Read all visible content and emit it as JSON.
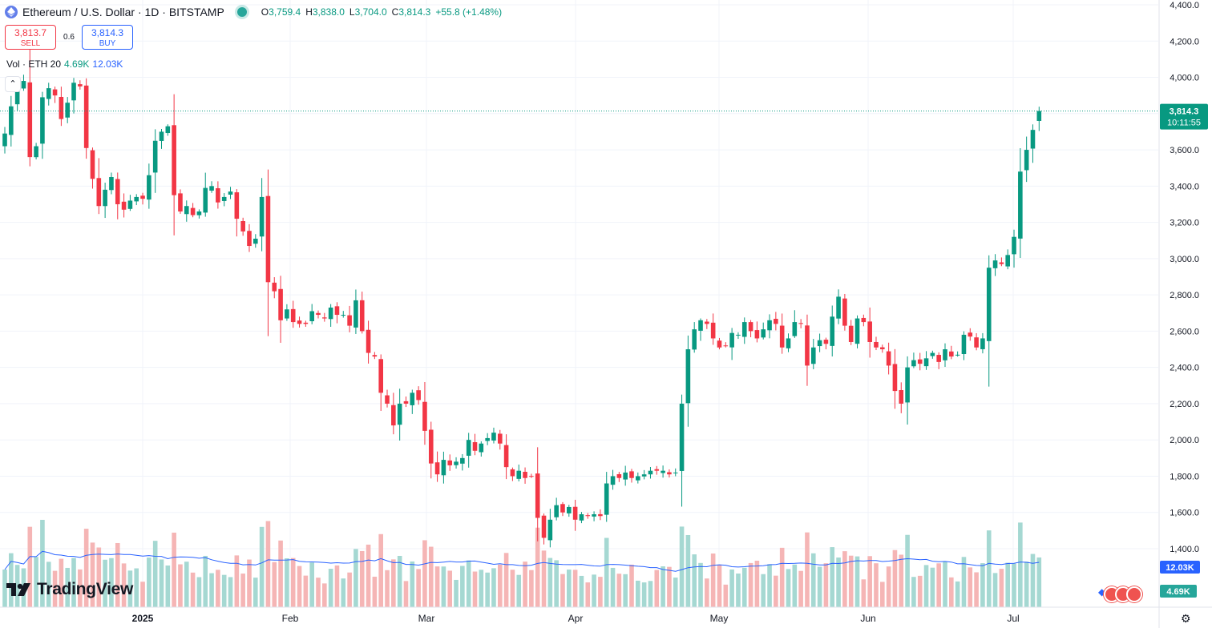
{
  "header": {
    "symbol_title": "Ethereum / U.S. Dollar · 1D · BITSTAMP",
    "ohlc": [
      {
        "key": "O",
        "value": "3,759.4"
      },
      {
        "key": "H",
        "value": "3,838.0"
      },
      {
        "key": "L",
        "value": "3,704.0"
      },
      {
        "key": "C",
        "value": "3,814.3"
      }
    ],
    "change": "+55.8 (+1.48%)"
  },
  "trade": {
    "sell_price": "3,813.7",
    "sell_label": "SELL",
    "spread": "0.6",
    "buy_price": "3,814.3",
    "buy_label": "BUY"
  },
  "volume_legend": {
    "label": "Vol · ETH 20",
    "volume": "4.69K",
    "ma": "12.03K"
  },
  "brand": {
    "logo_text": "TradingView"
  },
  "price_axis": {
    "ticks": [
      "4,400.0",
      "4,200.0",
      "4,000.0",
      "3,800.0",
      "3,600.0",
      "3,400.0",
      "3,200.0",
      "3,000.0",
      "2,800.0",
      "2,600.0",
      "2,400.0",
      "2,200.0",
      "2,000.0",
      "1,800.0",
      "1,600.0",
      "1,400.0"
    ],
    "last_price_label": "3,814.3",
    "countdown": "10:11:55",
    "vol_ma_label": "12.03K",
    "vol_label": "4.69K"
  },
  "time_axis": {
    "labels": [
      "2025",
      "Feb",
      "Mar",
      "Apr",
      "May",
      "Jun",
      "Jul"
    ]
  },
  "colors": {
    "up": "#089981",
    "down": "#f23645",
    "vol_up": "#a5d8d2",
    "vol_down": "#f5b5b5",
    "ma": "#2962ff",
    "grid": "#f0f3fa"
  },
  "chart_data": {
    "type": "candlestick",
    "title": "Ethereum / U.S. Dollar · 1D · BITSTAMP",
    "ylim": [
      1300,
      4400
    ],
    "x_labels": [
      "2025",
      "Feb",
      "Mar",
      "Apr",
      "May",
      "Jun",
      "Jul"
    ],
    "closes": [
      3690,
      3840,
      3930,
      3980,
      3560,
      3620,
      3890,
      3940,
      3900,
      3770,
      3860,
      3970,
      3950,
      3610,
      3440,
      3290,
      3380,
      3450,
      3300,
      3270,
      3320,
      3340,
      3330,
      3460,
      3650,
      3700,
      3730,
      3350,
      3260,
      3290,
      3240,
      3260,
      3390,
      3400,
      3310,
      3340,
      3370,
      3220,
      3150,
      3070,
      3110,
      3340,
      2870,
      2820,
      2660,
      2720,
      2650,
      2640,
      2640,
      2710,
      2690,
      2670,
      2730,
      2690,
      2690,
      2630,
      2770,
      2600,
      2480,
      2460,
      2260,
      2200,
      2080,
      2200,
      2200,
      2260,
      2220,
      2050,
      1870,
      1810,
      1890,
      1860,
      1880,
      1900,
      2000,
      1940,
      1980,
      2010,
      2040,
      1980,
      1850,
      1800,
      1830,
      1790,
      1800,
      1570,
      1460,
      1560,
      1640,
      1600,
      1630,
      1560,
      1590,
      1580,
      1590,
      1580,
      1760,
      1800,
      1790,
      1820,
      1790,
      1800,
      1810,
      1830,
      1830,
      1830,
      1810,
      1820,
      2200,
      2500,
      2610,
      2660,
      2640,
      2560,
      2510,
      2520,
      2590,
      2580,
      2650,
      2600,
      2560,
      2610,
      2660,
      2640,
      2510,
      2560,
      2650,
      2640,
      2410,
      2510,
      2550,
      2530,
      2680,
      2790,
      2630,
      2540,
      2670,
      2650,
      2540,
      2510,
      2500,
      2410,
      2270,
      2200,
      2400,
      2440,
      2420,
      2450,
      2480,
      2430,
      2500,
      2460,
      2470,
      2580,
      2570,
      2510,
      2560,
      2950,
      2990,
      2970,
      3020,
      3120,
      3480,
      3600,
      3710,
      3814.3
    ],
    "volume_moving_average": "12.03K",
    "last_volume": "4.69K",
    "last_close": 3814.3
  }
}
